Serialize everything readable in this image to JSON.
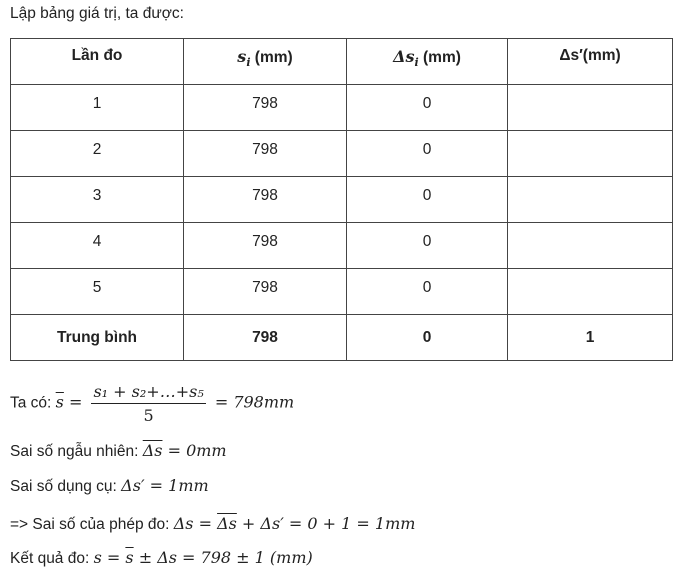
{
  "intro": "Lập bảng giá trị, ta được:",
  "table": {
    "headers": [
      "Lần đo",
      "s",
      "Δs",
      "Δs′(mm)"
    ],
    "header_units": {
      "c1": " (mm)",
      "c2": " (mm)"
    },
    "header_sub": "i",
    "rows": [
      [
        "1",
        "798",
        "0",
        ""
      ],
      [
        "2",
        "798",
        "0",
        ""
      ],
      [
        "3",
        "798",
        "0",
        ""
      ],
      [
        "4",
        "798",
        "0",
        ""
      ],
      [
        "5",
        "798",
        "0",
        ""
      ]
    ],
    "average": [
      "Trung bình",
      "798",
      "0",
      "1"
    ]
  },
  "lines": {
    "l1": {
      "label": "Ta có: ",
      "lhs": "s",
      "eq": " = ",
      "num": "s₁ + s₂+…+s₅",
      "den": "5",
      "rhs": " = 798mm"
    },
    "l2": {
      "label": "Sai số ngẫu nhiên: ",
      "bar": "Δs",
      "rhs": " = 0mm"
    },
    "l3": {
      "label": "Sai số dụng cụ: ",
      "expr": "Δs′ = 1mm"
    },
    "l4": {
      "label": "=> Sai số của phép đo: ",
      "a": "Δs = ",
      "bar": "Δs",
      "b": " + Δs′ = 0 + 1 = 1mm"
    },
    "l5": {
      "label": "Kết quả đo: ",
      "a": "s = ",
      "bar": "s",
      "b": " ± Δs = 798 ± 1 (mm)"
    }
  }
}
